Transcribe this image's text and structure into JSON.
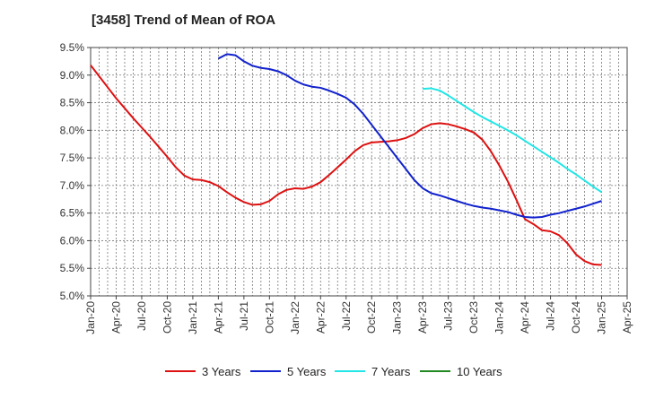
{
  "chart_data": {
    "type": "line",
    "title": "[3458]  Trend of Mean of ROA",
    "xlabel": "",
    "ylabel": "",
    "ylim": [
      5.0,
      9.5
    ],
    "yticks": [
      "5.0%",
      "5.5%",
      "6.0%",
      "6.5%",
      "7.0%",
      "7.5%",
      "8.0%",
      "8.5%",
      "9.0%",
      "9.5%"
    ],
    "yunit": "%",
    "x_tick_labels": [
      "Jan-20",
      "Apr-20",
      "Jul-20",
      "Oct-20",
      "Jan-21",
      "Apr-21",
      "Jul-21",
      "Oct-21",
      "Jan-22",
      "Apr-22",
      "Jul-22",
      "Oct-22",
      "Jan-23",
      "Apr-23",
      "Jul-23",
      "Oct-23",
      "Jan-24",
      "Apr-24",
      "Jul-24",
      "Oct-24",
      "Jan-25",
      "Apr-25"
    ],
    "x_start": "Jan-20",
    "grid": true,
    "legend_position": "bottom",
    "series": [
      {
        "name": "3 Years",
        "color": "#dd1111",
        "points": [
          [
            "Jan-20",
            9.18
          ],
          [
            "Feb-20",
            8.98
          ],
          [
            "Mar-20",
            8.78
          ],
          [
            "Apr-20",
            8.58
          ],
          [
            "May-20",
            8.4
          ],
          [
            "Jun-20",
            8.22
          ],
          [
            "Jul-20",
            8.05
          ],
          [
            "Aug-20",
            7.88
          ],
          [
            "Sep-20",
            7.7
          ],
          [
            "Oct-20",
            7.52
          ],
          [
            "Nov-20",
            7.33
          ],
          [
            "Dec-20",
            7.18
          ],
          [
            "Jan-21",
            7.11
          ],
          [
            "Feb-21",
            7.1
          ],
          [
            "Mar-21",
            7.06
          ],
          [
            "Apr-21",
            6.99
          ],
          [
            "May-21",
            6.88
          ],
          [
            "Jun-21",
            6.78
          ],
          [
            "Jul-21",
            6.7
          ],
          [
            "Aug-21",
            6.65
          ],
          [
            "Sep-21",
            6.66
          ],
          [
            "Oct-21",
            6.72
          ],
          [
            "Nov-21",
            6.84
          ],
          [
            "Dec-21",
            6.92
          ],
          [
            "Jan-22",
            6.95
          ],
          [
            "Feb-22",
            6.94
          ],
          [
            "Mar-22",
            6.98
          ],
          [
            "Apr-22",
            7.06
          ],
          [
            "May-22",
            7.19
          ],
          [
            "Jun-22",
            7.33
          ],
          [
            "Jul-22",
            7.47
          ],
          [
            "Aug-22",
            7.62
          ],
          [
            "Sep-22",
            7.73
          ],
          [
            "Oct-22",
            7.78
          ],
          [
            "Nov-22",
            7.79
          ],
          [
            "Dec-22",
            7.8
          ],
          [
            "Jan-23",
            7.82
          ],
          [
            "Feb-23",
            7.86
          ],
          [
            "Mar-23",
            7.93
          ],
          [
            "Apr-23",
            8.04
          ],
          [
            "May-23",
            8.11
          ],
          [
            "Jun-23",
            8.13
          ],
          [
            "Jul-23",
            8.11
          ],
          [
            "Aug-23",
            8.07
          ],
          [
            "Sep-23",
            8.02
          ],
          [
            "Oct-23",
            7.96
          ],
          [
            "Nov-23",
            7.83
          ],
          [
            "Dec-23",
            7.62
          ],
          [
            "Jan-24",
            7.36
          ],
          [
            "Feb-24",
            7.07
          ],
          [
            "Mar-24",
            6.74
          ],
          [
            "Apr-24",
            6.39
          ],
          [
            "May-24",
            6.3
          ],
          [
            "Jun-24",
            6.19
          ],
          [
            "Jul-24",
            6.17
          ],
          [
            "Aug-24",
            6.1
          ],
          [
            "Sep-24",
            5.95
          ],
          [
            "Oct-24",
            5.75
          ],
          [
            "Nov-24",
            5.63
          ],
          [
            "Dec-24",
            5.57
          ],
          [
            "Jan-25",
            5.56
          ]
        ]
      },
      {
        "name": "5 Years",
        "color": "#1122cc",
        "points": [
          [
            "Apr-21",
            9.3
          ],
          [
            "May-21",
            9.38
          ],
          [
            "Jun-21",
            9.36
          ],
          [
            "Jul-21",
            9.25
          ],
          [
            "Aug-21",
            9.17
          ],
          [
            "Sep-21",
            9.13
          ],
          [
            "Oct-21",
            9.11
          ],
          [
            "Nov-21",
            9.07
          ],
          [
            "Dec-21",
            9.0
          ],
          [
            "Jan-22",
            8.9
          ],
          [
            "Feb-22",
            8.83
          ],
          [
            "Mar-22",
            8.79
          ],
          [
            "Apr-22",
            8.77
          ],
          [
            "May-22",
            8.72
          ],
          [
            "Jun-22",
            8.66
          ],
          [
            "Jul-22",
            8.59
          ],
          [
            "Aug-22",
            8.47
          ],
          [
            "Sep-22",
            8.3
          ],
          [
            "Oct-22",
            8.1
          ],
          [
            "Nov-22",
            7.9
          ],
          [
            "Dec-22",
            7.7
          ],
          [
            "Jan-23",
            7.5
          ],
          [
            "Feb-23",
            7.3
          ],
          [
            "Mar-23",
            7.1
          ],
          [
            "Apr-23",
            6.95
          ],
          [
            "May-23",
            6.86
          ],
          [
            "Jun-23",
            6.82
          ],
          [
            "Jul-23",
            6.77
          ],
          [
            "Aug-23",
            6.72
          ],
          [
            "Sep-23",
            6.67
          ],
          [
            "Oct-23",
            6.63
          ],
          [
            "Nov-23",
            6.6
          ],
          [
            "Dec-23",
            6.58
          ],
          [
            "Jan-24",
            6.55
          ],
          [
            "Feb-24",
            6.52
          ],
          [
            "Mar-24",
            6.47
          ],
          [
            "Apr-24",
            6.43
          ],
          [
            "May-24",
            6.42
          ],
          [
            "Jun-24",
            6.43
          ],
          [
            "Jul-24",
            6.47
          ],
          [
            "Aug-24",
            6.5
          ],
          [
            "Sep-24",
            6.54
          ],
          [
            "Oct-24",
            6.58
          ],
          [
            "Nov-24",
            6.62
          ],
          [
            "Dec-24",
            6.67
          ],
          [
            "Jan-25",
            6.72
          ]
        ]
      },
      {
        "name": "7 Years",
        "color": "#22e6e6",
        "points": [
          [
            "Apr-23",
            8.75
          ],
          [
            "May-23",
            8.76
          ],
          [
            "Jun-23",
            8.72
          ],
          [
            "Jul-23",
            8.63
          ],
          [
            "Aug-23",
            8.53
          ],
          [
            "Sep-23",
            8.43
          ],
          [
            "Oct-23",
            8.33
          ],
          [
            "Nov-23",
            8.24
          ],
          [
            "Dec-23",
            8.16
          ],
          [
            "Jan-24",
            8.08
          ],
          [
            "Feb-24",
            8.0
          ],
          [
            "Mar-24",
            7.91
          ],
          [
            "Apr-24",
            7.81
          ],
          [
            "May-24",
            7.71
          ],
          [
            "Jun-24",
            7.61
          ],
          [
            "Jul-24",
            7.51
          ],
          [
            "Aug-24",
            7.41
          ],
          [
            "Sep-24",
            7.3
          ],
          [
            "Oct-24",
            7.2
          ],
          [
            "Nov-24",
            7.09
          ],
          [
            "Dec-24",
            6.98
          ],
          [
            "Jan-25",
            6.88
          ]
        ]
      },
      {
        "name": "10 Years",
        "color": "#228822",
        "points": []
      }
    ]
  }
}
